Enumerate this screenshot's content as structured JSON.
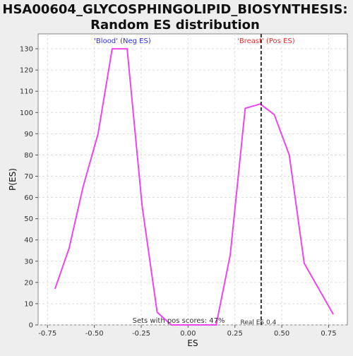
{
  "chart_data": {
    "type": "line",
    "title_line1": "HSA00604_GLYCOSPHINGOLIPID_BIOSYNTHESIS:",
    "title_line2": "Random ES distribution",
    "xlabel": "ES",
    "ylabel": "P(ES)",
    "xlim": [
      -0.8,
      0.85
    ],
    "ylim": [
      0,
      137
    ],
    "x_ticks": [
      -0.75,
      -0.5,
      -0.25,
      0.0,
      0.25,
      0.5,
      0.75
    ],
    "x_tick_labels": [
      "-0.75",
      "-0.50",
      "-0.25",
      "0.00",
      "0.25",
      "0.50",
      "0.75"
    ],
    "y_ticks": [
      0,
      10,
      20,
      30,
      40,
      50,
      60,
      70,
      80,
      90,
      100,
      110,
      120,
      130
    ],
    "y_tick_labels": [
      "0",
      "10",
      "20",
      "30",
      "40",
      "50",
      "60",
      "70",
      "80",
      "90",
      "100",
      "110",
      "120",
      "130"
    ],
    "grid": true,
    "series": [
      {
        "color": "#ee44ee",
        "x": [
          -0.71,
          -0.635,
          -0.56,
          -0.48,
          -0.405,
          -0.325,
          -0.245,
          -0.165,
          -0.09,
          -0.01,
          0.07,
          0.15,
          0.225,
          0.305,
          0.385,
          0.46,
          0.54,
          0.62,
          0.775
        ],
        "y": [
          17,
          36,
          65,
          90,
          130,
          130,
          56,
          6,
          0,
          0,
          0,
          0,
          33,
          102,
          104,
          99,
          80,
          29,
          5
        ]
      }
    ],
    "real_es": 0.39,
    "real_es_color": "#333333",
    "annotations": {
      "neg_label": "'Blood' (Neg ES)",
      "neg_color": "#3333dd",
      "pos_label": "'Breast' (Pos ES)",
      "pos_color": "#dd3333",
      "pos_scores_text": "Sets with pos scores: 47%",
      "real_es_text": "Real ES 0.4"
    }
  }
}
